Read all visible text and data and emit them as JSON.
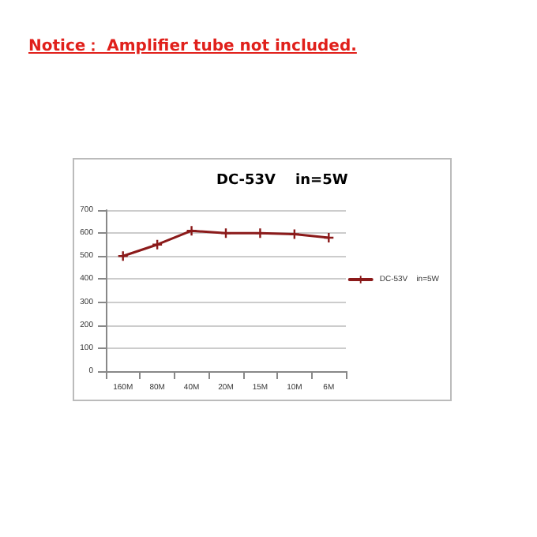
{
  "chart_data": {
    "type": "line",
    "title": "DC-53V    in=5W",
    "annotations": [
      "Notice：  Amplifier tube not included."
    ],
    "categories": [
      "160M",
      "80M",
      "40M",
      "20M",
      "15M",
      "10M",
      "6M"
    ],
    "series": [
      {
        "name": "DC-53V    in=5W",
        "color": "#8b1a1a",
        "values": [
          500,
          550,
          610,
          600,
          600,
          595,
          580
        ]
      }
    ],
    "ylim": [
      0,
      700
    ],
    "yticks": [
      0,
      100,
      200,
      300,
      400,
      500,
      600,
      700
    ],
    "grid": "y",
    "legend": "right",
    "marker": "cross",
    "line_style": "solid"
  }
}
